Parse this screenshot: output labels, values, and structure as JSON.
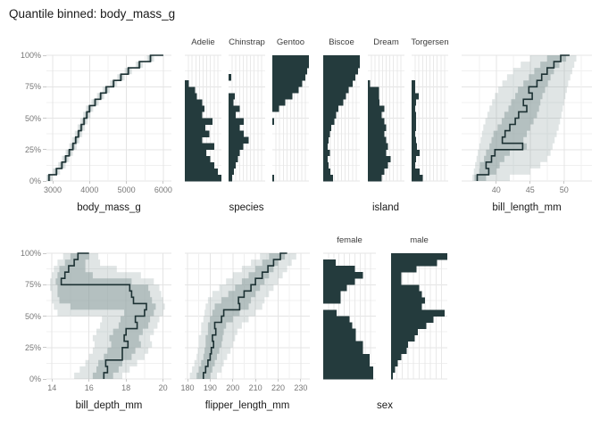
{
  "title": "Quantile binned: body_mass_g",
  "colors": {
    "background": "#ffffff",
    "bar_fill": "#243b3d",
    "median_line": "#1c3133",
    "band_base": "#8fa3a3",
    "band_outer_opacity": 0.28,
    "band_inner_opacity": 0.55,
    "grid_major": "#e4e4e4",
    "grid_minor": "#f0f0f0",
    "bar_panel_grid": "#e9e9e9",
    "tick_text": "#777777",
    "axis_title_text": "#1a1a1a",
    "strip_text": "#3c3c3c",
    "tick_mark": "#c8c8c8"
  },
  "y_axis": {
    "ticks": [
      "100%",
      "75%",
      "50%",
      "25%",
      "0%"
    ],
    "tick_values": [
      100,
      75,
      50,
      25,
      0
    ]
  },
  "x_axis_titles": [
    "body_mass_g",
    "species",
    "island",
    "bill_length_mm",
    "bill_depth_mm",
    "flipper_length_mm",
    "sex"
  ],
  "chart_data": [
    {
      "id": "body_mass_g",
      "type": "line",
      "style": "quantile_step_with_bands",
      "quantile_levels_pct": "0 to 100 by 5",
      "x_ticks": [
        3000,
        4000,
        5000,
        6000
      ],
      "x_minor": [
        3500,
        4500,
        5500
      ],
      "x_range": [
        2830,
        6220
      ],
      "median": [
        2900,
        3100,
        3250,
        3350,
        3450,
        3550,
        3625,
        3700,
        3775,
        3850,
        3925,
        4000,
        4150,
        4300,
        4450,
        4650,
        4850,
        5050,
        5350,
        5650,
        6000
      ],
      "inner_delta": 45,
      "outer_delta": 100
    },
    {
      "id": "species_Adelie",
      "type": "bar",
      "style": "horizontal_quantile_bars",
      "facet": "Adelie",
      "values": [
        0,
        0,
        0,
        0,
        0.11,
        0.28,
        0.33,
        0.48,
        0.54,
        0.48,
        0.75,
        0.56,
        0.67,
        0.48,
        0.8,
        0.58,
        0.7,
        0.8,
        0.9,
        1.0
      ]
    },
    {
      "id": "species_Chinstrap",
      "type": "bar",
      "style": "horizontal_quantile_bars",
      "facet": "Chinstrap",
      "values": [
        0,
        0,
        0,
        0.07,
        0,
        0,
        0.17,
        0.13,
        0.3,
        0.2,
        0.42,
        0.3,
        0.42,
        0.55,
        0.4,
        0.3,
        0.25,
        0.2,
        0.15,
        0.1
      ]
    },
    {
      "id": "species_Gentoo",
      "type": "bar",
      "style": "horizontal_quantile_bars",
      "facet": "Gentoo",
      "values": [
        1.0,
        1.0,
        0.95,
        0.9,
        0.82,
        0.72,
        0.55,
        0.35,
        0.18,
        0,
        0.05,
        0,
        0,
        0,
        0,
        0,
        0,
        0,
        0,
        0.05
      ]
    },
    {
      "id": "island_Biscoe",
      "type": "bar",
      "style": "horizontal_quantile_bars",
      "facet": "Biscoe",
      "values": [
        1.0,
        1.0,
        0.95,
        0.88,
        0.8,
        0.7,
        0.62,
        0.55,
        0.42,
        0.35,
        0.3,
        0.22,
        0.18,
        0.15,
        0.12,
        0.18,
        0.12,
        0.15,
        0.2,
        0.27
      ]
    },
    {
      "id": "island_Dream",
      "type": "bar",
      "style": "horizontal_quantile_bars",
      "facet": "Dream",
      "values": [
        0,
        0,
        0,
        0,
        0.06,
        0.3,
        0.3,
        0.32,
        0.45,
        0.38,
        0.45,
        0.5,
        0.45,
        0.5,
        0.55,
        0.5,
        0.62,
        0.55,
        0.45,
        0.38
      ]
    },
    {
      "id": "island_Torgersen",
      "type": "bar",
      "style": "horizontal_quantile_bars",
      "facet": "Torgersen",
      "values": [
        0,
        0,
        0,
        0,
        0.1,
        0.1,
        0.2,
        0.12,
        0.1,
        0.12,
        0.12,
        0.12,
        0.1,
        0.12,
        0.15,
        0.22,
        0.12,
        0.1,
        0.22,
        0.3
      ]
    },
    {
      "id": "bill_length_mm",
      "type": "line",
      "style": "quantile_step_with_bands",
      "quantile_levels_pct": "0 to 100 by 5",
      "x_ticks": [
        40,
        45,
        50
      ],
      "x_minor": [
        37.5,
        42.5,
        47.5,
        52.5
      ],
      "x_range": [
        34.9,
        54.1
      ],
      "median": [
        37.2,
        38.9,
        38.5,
        39.3,
        39.8,
        43.9,
        40.9,
        41.3,
        42.0,
        42.8,
        43.3,
        44.5,
        44.0,
        45.3,
        44.8,
        46.0,
        46.7,
        47.5,
        48.5,
        49.5,
        50.8
      ],
      "inner_lo": [
        36.8,
        37.5,
        37.6,
        38.2,
        38.5,
        39.0,
        39.3,
        39.6,
        40.2,
        40.8,
        41.2,
        41.8,
        42.2,
        42.8,
        43.2,
        44.0,
        44.8,
        45.6,
        46.5,
        47.5,
        49.5
      ],
      "inner_hi": [
        38.5,
        40.0,
        40.5,
        41.2,
        42.0,
        44.5,
        44.0,
        44.5,
        45.0,
        45.5,
        46.0,
        46.3,
        46.5,
        46.8,
        47.2,
        47.6,
        48.0,
        48.5,
        49.3,
        50.3,
        51.3
      ],
      "outer_lo": [
        36.5,
        36.7,
        36.9,
        37.1,
        37.3,
        37.5,
        37.7,
        37.9,
        38.1,
        38.4,
        38.7,
        39.0,
        39.4,
        39.8,
        40.3,
        40.9,
        41.6,
        42.5,
        43.6,
        45.0,
        48.5
      ],
      "outer_hi": [
        42.0,
        45.0,
        46.5,
        47.5,
        48.0,
        48.3,
        48.6,
        48.9,
        49.2,
        49.4,
        49.6,
        49.8,
        50.0,
        50.2,
        50.4,
        50.6,
        50.9,
        51.2,
        51.5,
        51.8,
        52.0
      ]
    },
    {
      "id": "bill_depth_mm",
      "type": "line",
      "style": "quantile_step_with_bands",
      "quantile_levels_pct": "0 to 100 by 5",
      "x_ticks": [
        14,
        16,
        18,
        20
      ],
      "x_minor": [
        15,
        17,
        19
      ],
      "x_range": [
        13.7,
        20.45
      ],
      "median": [
        16.8,
        17.0,
        16.9,
        17.8,
        17.8,
        18.1,
        17.9,
        18.0,
        18.6,
        18.5,
        19.0,
        19.1,
        18.4,
        18.3,
        18.2,
        14.5,
        14.7,
        14.9,
        15.2,
        15.4,
        16.0
      ],
      "inner_lo": [
        16.2,
        16.4,
        16.5,
        16.8,
        17.0,
        17.2,
        17.1,
        17.3,
        17.6,
        17.7,
        17.9,
        15.0,
        14.4,
        14.3,
        14.3,
        14.2,
        14.3,
        14.4,
        14.7,
        15.0,
        15.5
      ],
      "inner_hi": [
        17.3,
        17.6,
        17.8,
        18.3,
        18.5,
        18.8,
        18.7,
        18.9,
        19.2,
        19.3,
        19.5,
        19.6,
        19.4,
        19.3,
        19.2,
        18.3,
        16.2,
        15.8,
        15.8,
        16.0,
        16.4
      ],
      "outer_lo": [
        15.2,
        15.5,
        15.8,
        16.0,
        16.2,
        16.3,
        16.2,
        16.4,
        16.6,
        16.7,
        14.3,
        14.1,
        14.0,
        14.0,
        13.9,
        13.9,
        14.0,
        14.1,
        14.3,
        14.6,
        15.2
      ],
      "outer_hi": [
        17.8,
        18.2,
        18.6,
        19.0,
        19.2,
        19.4,
        19.3,
        19.5,
        19.7,
        19.8,
        20.0,
        20.1,
        20.0,
        19.9,
        19.8,
        19.5,
        18.8,
        17.5,
        16.6,
        16.5,
        16.9
      ]
    },
    {
      "id": "flipper_length_mm",
      "type": "line",
      "style": "quantile_step_with_bands",
      "quantile_levels_pct": "0 to 100 by 5",
      "x_ticks": [
        180,
        190,
        200,
        210,
        220,
        230
      ],
      "x_minor": [
        185,
        195,
        205,
        215,
        225
      ],
      "x_range": [
        178.8,
        234
      ],
      "median": [
        187,
        188,
        189,
        190,
        190.5,
        191.5,
        191,
        192.5,
        192,
        195,
        196,
        203,
        202.5,
        205,
        208,
        210,
        213,
        215.5,
        218,
        221,
        224
      ],
      "inner_lo": [
        184,
        185,
        186,
        187,
        187.5,
        188,
        188,
        189,
        189,
        190,
        191,
        192,
        195,
        198,
        201,
        204,
        207,
        210,
        213,
        216,
        221
      ],
      "inner_hi": [
        190,
        191,
        192,
        193,
        194,
        195,
        195.5,
        196,
        197,
        200,
        203,
        207,
        208,
        210,
        212,
        214,
        216,
        218,
        220,
        223,
        226
      ],
      "outer_lo": [
        181,
        182,
        183,
        184,
        184.5,
        185,
        185,
        186,
        186,
        187,
        187.5,
        188,
        189,
        191,
        194,
        197,
        200,
        204,
        208,
        212,
        217
      ],
      "outer_hi": [
        193,
        195,
        196,
        197.5,
        199,
        200,
        201,
        202,
        204,
        207,
        210,
        213,
        214,
        216,
        218,
        220,
        222,
        224,
        226,
        228,
        230
      ]
    },
    {
      "id": "sex_female",
      "type": "bar",
      "style": "horizontal_quantile_bars",
      "facet": "female",
      "values": [
        0,
        0.24,
        0.6,
        0.75,
        0.6,
        0.45,
        0.33,
        0.33,
        0,
        0.25,
        0.5,
        0.55,
        0.62,
        0.62,
        0.75,
        0.75,
        0.88,
        0.88,
        0.95,
        0.95
      ]
    },
    {
      "id": "sex_male",
      "type": "bar",
      "style": "horizontal_quantile_bars",
      "facet": "male",
      "values": [
        1.0,
        0.82,
        0.45,
        0.18,
        0.18,
        0.5,
        0.55,
        0.6,
        0.55,
        0.95,
        0.75,
        0.63,
        0.48,
        0.42,
        0.3,
        0.28,
        0.18,
        0.12,
        0.07,
        0.03
      ]
    }
  ]
}
